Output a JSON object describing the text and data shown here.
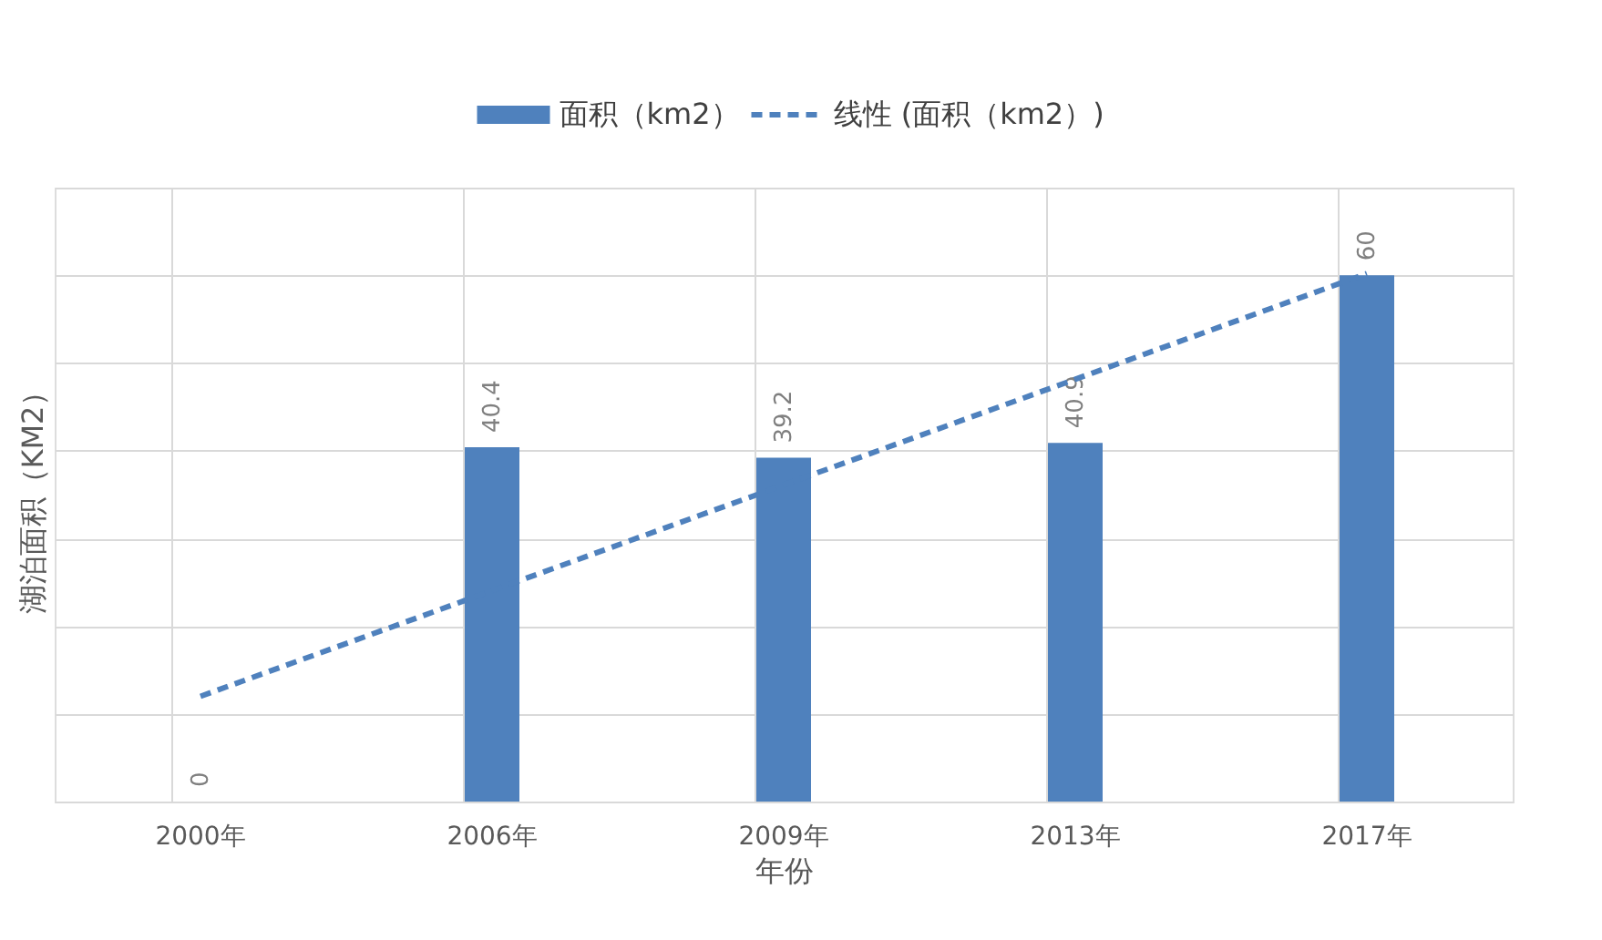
{
  "chart_data": {
    "type": "bar",
    "categories": [
      "2000年",
      "2006年",
      "2009年",
      "2013年",
      "2017年"
    ],
    "xlabel": "年份",
    "ylabel": "湖泊面积（KM2）",
    "series": [
      {
        "name": "面积（km2）",
        "color": "#4f81bd",
        "values": [
          0,
          40.4,
          39.2,
          40.9,
          60
        ],
        "value_labels": [
          "0",
          "40.4",
          "39.2",
          "40.9",
          "60"
        ]
      },
      {
        "name": "线性 (面积（km2）)",
        "type": "line",
        "line_style": "dashed",
        "color": "#4f81bd",
        "x": [
          "2000年",
          "2006年",
          "2009年",
          "2013年",
          "2017年"
        ],
        "values": [
          12.0,
          24.05,
          36.1,
          48.15,
          60.2
        ]
      }
    ],
    "ylim": [
      0,
      70
    ],
    "yticks": [
      {
        "value": 0,
        "label": null
      },
      {
        "value": 10,
        "label": null
      },
      {
        "value": 20,
        "label": null
      },
      {
        "value": 30,
        "label": null
      },
      {
        "value": 40,
        "label": null
      },
      {
        "value": 50,
        "label": null
      },
      {
        "value": 60,
        "label": null
      },
      {
        "value": 70,
        "label": null
      }
    ],
    "tick_labels": "x",
    "grid": true,
    "legend": "top"
  }
}
